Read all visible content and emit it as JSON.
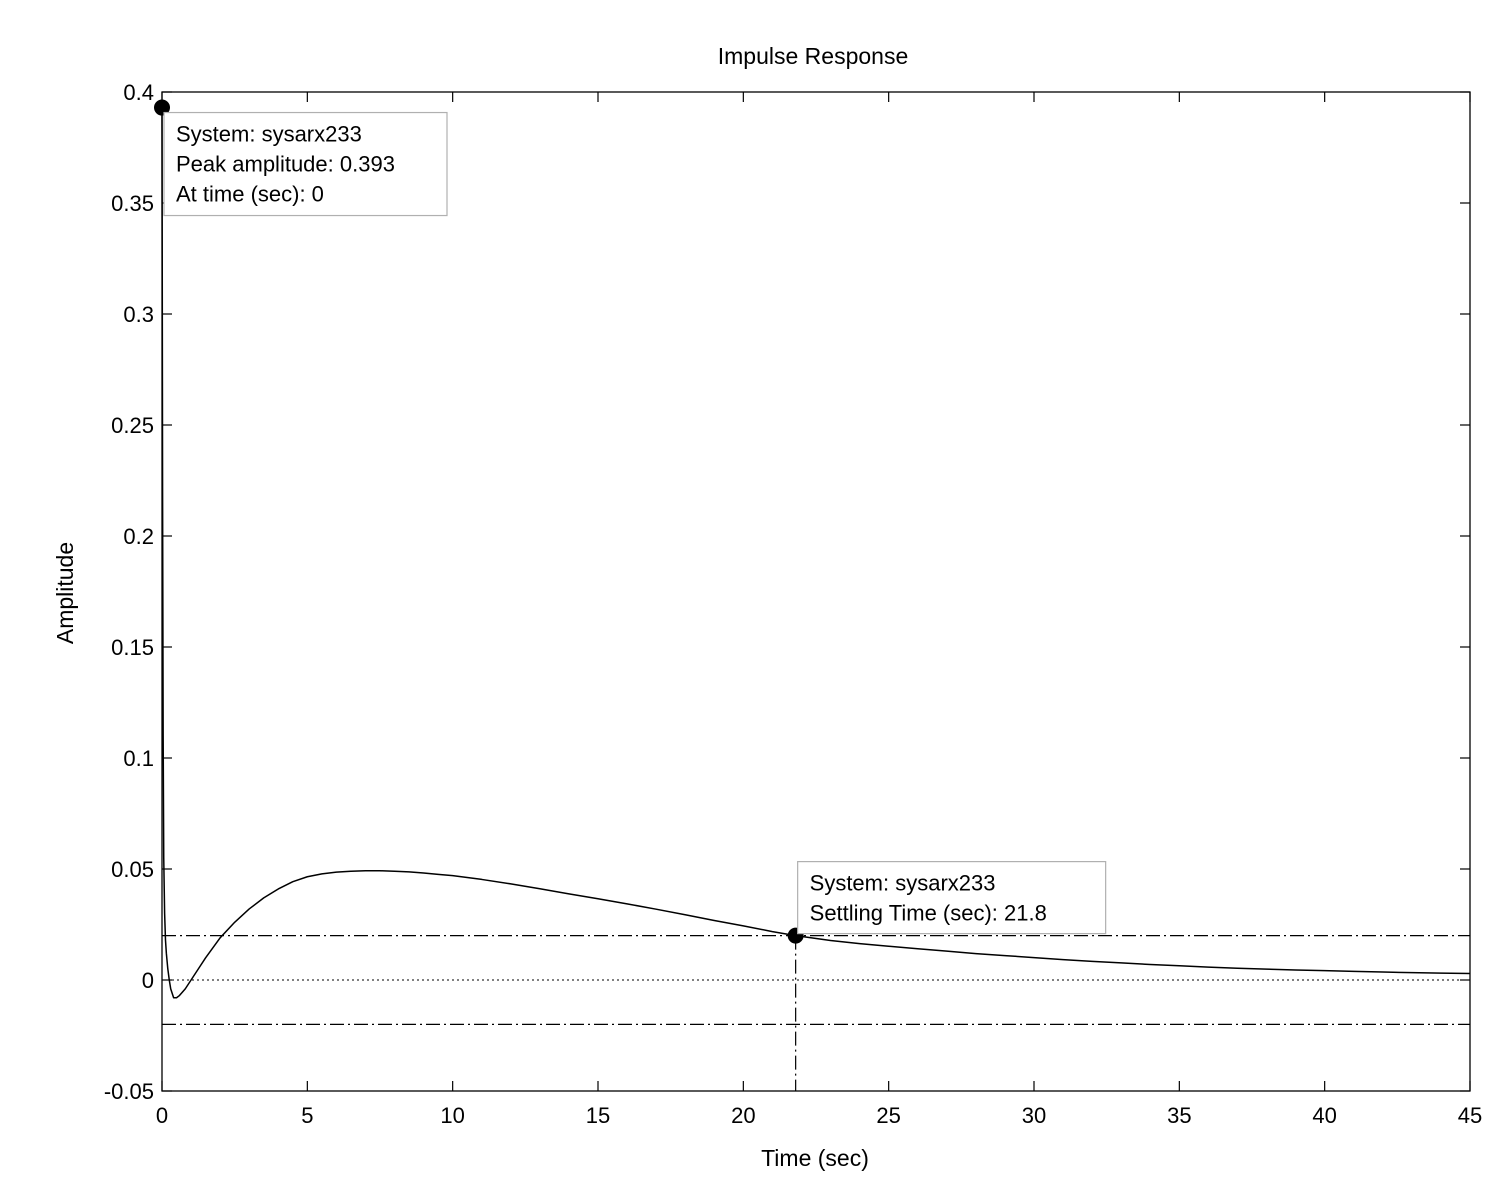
{
  "chart_data": {
    "type": "line",
    "title": "Impulse Response",
    "xlabel": "Time (sec)",
    "ylabel": "Amplitude",
    "xlim": [
      0,
      45
    ],
    "ylim": [
      -0.05,
      0.4
    ],
    "xticks": [
      0,
      5,
      10,
      15,
      20,
      25,
      30,
      35,
      40,
      45
    ],
    "yticks": [
      -0.05,
      0,
      0.05,
      0.1,
      0.15,
      0.2,
      0.25,
      0.3,
      0.35,
      0.4
    ],
    "xtick_labels": [
      "0",
      "5",
      "10",
      "15",
      "20",
      "25",
      "30",
      "35",
      "40",
      "45"
    ],
    "ytick_labels": [
      "-0.05",
      "0",
      "0.05",
      "0.1",
      "0.15",
      "0.2",
      "0.25",
      "0.3",
      "0.35",
      "0.4"
    ],
    "grid": false,
    "series": [
      {
        "color": "#000000",
        "x": [
          0,
          0.02,
          0.04,
          0.06,
          0.09,
          0.12,
          0.15,
          0.2,
          0.25,
          0.3,
          0.4,
          0.5,
          0.6,
          0.8,
          1.0,
          1.2,
          1.5,
          2.0,
          2.5,
          3.0,
          3.5,
          4.0,
          4.5,
          5.0,
          5.5,
          6.0,
          6.5,
          7.0,
          7.5,
          8.0,
          8.5,
          9.0,
          9.5,
          10.0,
          11.0,
          12.0,
          13.0,
          14.0,
          15.0,
          16.0,
          17.0,
          18.0,
          19.0,
          20.0,
          21.0,
          21.8,
          23.0,
          24.0,
          25.0,
          26.0,
          27.0,
          28.0,
          29.0,
          30.0,
          31.0,
          32.0,
          33.0,
          34.0,
          35.0,
          36.0,
          37.0,
          38.0,
          39.0,
          40.0,
          41.0,
          42.0,
          43.0,
          44.0,
          45.0
        ],
        "y": [
          0.393,
          0.22,
          0.11,
          0.055,
          0.03,
          0.018,
          0.012,
          0.005,
          0.0,
          -0.004,
          -0.008,
          -0.008,
          -0.007,
          -0.004,
          0.0,
          0.004,
          0.01,
          0.019,
          0.026,
          0.032,
          0.037,
          0.041,
          0.0443,
          0.0465,
          0.0478,
          0.0486,
          0.049,
          0.0492,
          0.0492,
          0.049,
          0.0487,
          0.0482,
          0.0476,
          0.047,
          0.0453,
          0.0433,
          0.0411,
          0.0388,
          0.0366,
          0.0343,
          0.0319,
          0.0294,
          0.0268,
          0.0244,
          0.0218,
          0.02,
          0.0178,
          0.0164,
          0.0152,
          0.0141,
          0.013,
          0.0119,
          0.011,
          0.0101,
          0.0092,
          0.0084,
          0.0077,
          0.007,
          0.0064,
          0.0058,
          0.0053,
          0.0049,
          0.0045,
          0.0042,
          0.0039,
          0.0036,
          0.0033,
          0.0031,
          0.0029
        ]
      }
    ],
    "settling_band": [
      0.02,
      -0.02
    ],
    "zero_line": 0,
    "settling_marker": {
      "x": 21.8,
      "y": 0.02
    },
    "peak_marker": {
      "x": 0,
      "y": 0.393
    },
    "annotations": [
      {
        "anchor": {
          "x": 0,
          "y": 0.393
        },
        "lines": [
          "System: sysarx233",
          "Peak amplitude: 0.393",
          "At time (sec): 0"
        ]
      },
      {
        "anchor": {
          "x": 21.8,
          "y": 0.02
        },
        "lines": [
          "System: sysarx233",
          "Settling Time (sec): 21.8"
        ]
      }
    ]
  }
}
